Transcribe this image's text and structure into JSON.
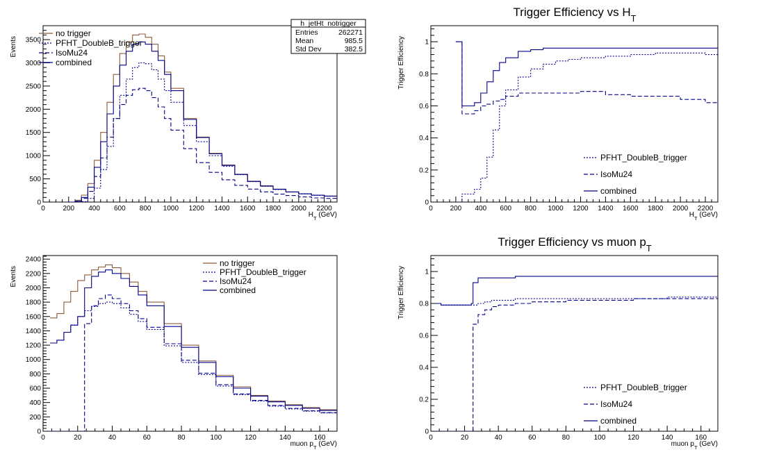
{
  "chart_data": [
    {
      "type": "line",
      "title": "",
      "xlabel": "H_T (GeV)",
      "ylabel": "Events",
      "xlim": [
        0,
        2300
      ],
      "ylim": [
        0,
        3800
      ],
      "xticks": [
        "0",
        "200",
        "400",
        "600",
        "800",
        "1000",
        "1200",
        "1400",
        "1600",
        "1800",
        "2000",
        "2200"
      ],
      "yticks": [
        "0",
        "500",
        "1000",
        "1500",
        "2000",
        "2500",
        "3000",
        "3500"
      ],
      "legend": "top-left",
      "stats": {
        "title": "h_jetHt_notrigger",
        "rows": [
          {
            "label": "Entries",
            "value": "262271"
          },
          {
            "label": "Mean",
            "value": "985.5"
          },
          {
            "label": "Std Dev",
            "value": "382.5"
          }
        ]
      },
      "series": [
        {
          "name": "no trigger",
          "color": "#8b5a3c",
          "style": "solid",
          "x": [
            200,
            250,
            300,
            350,
            400,
            450,
            500,
            550,
            600,
            650,
            700,
            750,
            800,
            850,
            900,
            950,
            1000,
            1100,
            1200,
            1300,
            1400,
            1500,
            1600,
            1700,
            1800,
            1900,
            2000,
            2100,
            2200,
            2300
          ],
          "y": [
            0,
            40,
            150,
            400,
            900,
            1500,
            2150,
            2750,
            3200,
            3450,
            3600,
            3620,
            3550,
            3400,
            3150,
            2800,
            2450,
            1800,
            1400,
            1050,
            800,
            600,
            450,
            350,
            280,
            220,
            180,
            150,
            130,
            110
          ]
        },
        {
          "name": "PFHT_DoubleB_trigger",
          "color": "#00008b",
          "style": "dotted",
          "x": [
            200,
            250,
            300,
            350,
            400,
            450,
            500,
            550,
            600,
            650,
            700,
            750,
            800,
            850,
            900,
            950,
            1000,
            1100,
            1200,
            1300,
            1400,
            1500,
            1600,
            1700,
            1800,
            1900,
            2000,
            2100,
            2200,
            2300
          ],
          "y": [
            0,
            0,
            10,
            80,
            300,
            700,
            1200,
            1800,
            2300,
            2650,
            2900,
            3000,
            2980,
            2850,
            2650,
            2400,
            2150,
            1650,
            1300,
            1000,
            770,
            590,
            440,
            340,
            270,
            215,
            175,
            145,
            125,
            105
          ]
        },
        {
          "name": "IsoMu24",
          "color": "#00008b",
          "style": "dashed",
          "x": [
            200,
            250,
            300,
            350,
            400,
            450,
            500,
            550,
            600,
            650,
            700,
            750,
            800,
            850,
            900,
            950,
            1000,
            1100,
            1200,
            1300,
            1400,
            1500,
            1600,
            1700,
            1800,
            1900,
            2000,
            2100,
            2200,
            2300
          ],
          "y": [
            0,
            20,
            80,
            230,
            550,
            950,
            1400,
            1800,
            2100,
            2300,
            2420,
            2450,
            2400,
            2250,
            2050,
            1800,
            1550,
            1150,
            850,
            640,
            480,
            360,
            280,
            220,
            170,
            140,
            110,
            90,
            80,
            70
          ]
        },
        {
          "name": "combined",
          "color": "#00008b",
          "style": "solid",
          "x": [
            200,
            250,
            300,
            350,
            400,
            450,
            500,
            550,
            600,
            650,
            700,
            750,
            800,
            850,
            900,
            950,
            1000,
            1100,
            1200,
            1300,
            1400,
            1500,
            1600,
            1700,
            1800,
            1900,
            2000,
            2100,
            2200,
            2300
          ],
          "y": [
            0,
            20,
            100,
            320,
            750,
            1300,
            1900,
            2500,
            2950,
            3250,
            3400,
            3450,
            3400,
            3250,
            3050,
            2750,
            2400,
            1780,
            1390,
            1040,
            790,
            595,
            445,
            345,
            275,
            218,
            178,
            148,
            128,
            108
          ]
        }
      ]
    },
    {
      "type": "line",
      "title": "Trigger Efficiency vs H_T",
      "xlabel": "H_T (GeV)",
      "ylabel": "Trigger Efficiency",
      "xlim": [
        0,
        2300
      ],
      "ylim": [
        0,
        1.1
      ],
      "xticks": [
        "0",
        "200",
        "400",
        "600",
        "800",
        "1000",
        "1200",
        "1400",
        "1600",
        "1800",
        "2000",
        "2200"
      ],
      "yticks": [
        "0",
        "0.2",
        "0.4",
        "0.6",
        "0.8",
        "1"
      ],
      "legend": "bottom-right",
      "series": [
        {
          "name": "PFHT_DoubleB_trigger",
          "color": "#00008b",
          "style": "dotted",
          "x": [
            200,
            250,
            300,
            350,
            400,
            450,
            500,
            550,
            600,
            700,
            800,
            900,
            1000,
            1100,
            1200,
            1400,
            1600,
            1800,
            2000,
            2200,
            2300
          ],
          "y": [
            0,
            0.05,
            0.05,
            0.08,
            0.15,
            0.28,
            0.45,
            0.6,
            0.7,
            0.78,
            0.83,
            0.86,
            0.88,
            0.89,
            0.9,
            0.91,
            0.92,
            0.93,
            0.93,
            0.92,
            0.94
          ]
        },
        {
          "name": "IsoMu24",
          "color": "#00008b",
          "style": "dashed",
          "x": [
            200,
            250,
            300,
            350,
            400,
            450,
            500,
            550,
            600,
            700,
            800,
            900,
            1000,
            1100,
            1200,
            1400,
            1600,
            1800,
            2000,
            2200,
            2300
          ],
          "y": [
            1.0,
            0.55,
            0.55,
            0.57,
            0.6,
            0.61,
            0.63,
            0.64,
            0.66,
            0.68,
            0.68,
            0.68,
            0.68,
            0.68,
            0.69,
            0.67,
            0.66,
            0.66,
            0.64,
            0.62,
            0.64
          ]
        },
        {
          "name": "combined",
          "color": "#00008b",
          "style": "solid",
          "x": [
            200,
            250,
            300,
            350,
            400,
            450,
            500,
            550,
            600,
            700,
            800,
            900,
            1000,
            1100,
            1200,
            1400,
            1600,
            1800,
            2000,
            2200,
            2300
          ],
          "y": [
            1.0,
            0.6,
            0.6,
            0.62,
            0.68,
            0.75,
            0.82,
            0.87,
            0.9,
            0.94,
            0.95,
            0.96,
            0.96,
            0.96,
            0.96,
            0.96,
            0.96,
            0.96,
            0.96,
            0.96,
            0.97
          ]
        }
      ]
    },
    {
      "type": "line",
      "title": "",
      "xlabel": "muon p_T (GeV)",
      "ylabel": "Events",
      "xlim": [
        0,
        170
      ],
      "ylim": [
        0,
        2450
      ],
      "xticks": [
        "0",
        "20",
        "40",
        "60",
        "80",
        "100",
        "120",
        "140",
        "160"
      ],
      "yticks": [
        "0",
        "200",
        "400",
        "600",
        "800",
        "1000",
        "1200",
        "1400",
        "1600",
        "1800",
        "2000",
        "2200",
        "2400"
      ],
      "legend": "top-right",
      "series": [
        {
          "name": "no trigger",
          "color": "#8b5a3c",
          "style": "solid",
          "x": [
            4,
            8,
            12,
            16,
            20,
            24,
            28,
            32,
            36,
            40,
            45,
            50,
            55,
            60,
            70,
            80,
            90,
            100,
            110,
            120,
            130,
            140,
            150,
            160,
            170
          ],
          "y": [
            1580,
            1640,
            1800,
            1950,
            2100,
            2180,
            2250,
            2290,
            2320,
            2280,
            2200,
            2080,
            1950,
            1800,
            1500,
            1200,
            980,
            780,
            620,
            500,
            420,
            370,
            330,
            300,
            280
          ]
        },
        {
          "name": "PFHT_DoubleB_trigger",
          "color": "#00008b",
          "style": "dotted",
          "x": [
            4,
            8,
            12,
            16,
            20,
            24,
            28,
            32,
            36,
            40,
            45,
            50,
            55,
            60,
            70,
            80,
            90,
            100,
            110,
            120,
            130,
            140,
            150,
            160,
            170
          ],
          "y": [
            1230,
            1270,
            1380,
            1480,
            1600,
            1680,
            1740,
            1780,
            1800,
            1780,
            1720,
            1630,
            1530,
            1420,
            1190,
            960,
            790,
            630,
            510,
            420,
            350,
            310,
            280,
            255,
            235
          ]
        },
        {
          "name": "IsoMu24",
          "color": "#00008b",
          "style": "dashed",
          "x": [
            4,
            8,
            12,
            16,
            20,
            23,
            24,
            28,
            32,
            36,
            40,
            45,
            50,
            55,
            60,
            70,
            80,
            90,
            100,
            110,
            120,
            130,
            140,
            150,
            160,
            170
          ],
          "y": [
            0,
            0,
            0,
            0,
            0,
            0,
            1500,
            1750,
            1850,
            1900,
            1850,
            1780,
            1680,
            1570,
            1450,
            1220,
            990,
            810,
            650,
            520,
            430,
            360,
            320,
            285,
            260,
            240
          ]
        },
        {
          "name": "combined",
          "color": "#00008b",
          "style": "solid",
          "x": [
            4,
            8,
            12,
            16,
            20,
            24,
            28,
            32,
            36,
            40,
            45,
            50,
            55,
            60,
            70,
            80,
            90,
            100,
            110,
            120,
            130,
            140,
            150,
            160,
            170
          ],
          "y": [
            1230,
            1270,
            1380,
            1480,
            1600,
            2000,
            2160,
            2220,
            2250,
            2200,
            2130,
            2020,
            1900,
            1750,
            1460,
            1170,
            960,
            760,
            600,
            490,
            410,
            360,
            320,
            290,
            270
          ]
        }
      ]
    },
    {
      "type": "line",
      "title": "Trigger Efficiency vs muon p_T",
      "xlabel": "muon p_T (GeV)",
      "ylabel": "Trigger Efficiency",
      "xlim": [
        0,
        170
      ],
      "ylim": [
        0,
        1.1
      ],
      "xticks": [
        "0",
        "20",
        "40",
        "60",
        "80",
        "100",
        "120",
        "140",
        "160"
      ],
      "yticks": [
        "0",
        "0.2",
        "0.4",
        "0.6",
        "0.8",
        "1"
      ],
      "legend": "bottom-right",
      "series": [
        {
          "name": "PFHT_DoubleB_trigger",
          "color": "#00008b",
          "style": "dotted",
          "x": [
            3,
            6,
            10,
            15,
            20,
            24,
            28,
            32,
            36,
            40,
            50,
            60,
            80,
            100,
            120,
            140,
            160,
            170
          ],
          "y": [
            0.8,
            0.79,
            0.79,
            0.79,
            0.79,
            0.79,
            0.8,
            0.81,
            0.82,
            0.82,
            0.83,
            0.83,
            0.83,
            0.83,
            0.83,
            0.84,
            0.84,
            0.84
          ]
        },
        {
          "name": "IsoMu24",
          "color": "#00008b",
          "style": "dashed",
          "x": [
            3,
            6,
            10,
            15,
            20,
            24,
            25,
            28,
            32,
            36,
            40,
            50,
            60,
            80,
            100,
            120,
            140,
            160,
            170
          ],
          "y": [
            0,
            0,
            0,
            0,
            0,
            0,
            0.67,
            0.73,
            0.76,
            0.78,
            0.79,
            0.8,
            0.81,
            0.82,
            0.82,
            0.83,
            0.83,
            0.83,
            0.83
          ]
        },
        {
          "name": "combined",
          "color": "#00008b",
          "style": "solid",
          "x": [
            3,
            6,
            10,
            15,
            20,
            24,
            25,
            28,
            32,
            36,
            40,
            50,
            60,
            80,
            100,
            120,
            140,
            160,
            170
          ],
          "y": [
            0.8,
            0.79,
            0.79,
            0.79,
            0.79,
            0.8,
            0.93,
            0.96,
            0.96,
            0.96,
            0.96,
            0.97,
            0.97,
            0.97,
            0.97,
            0.97,
            0.97,
            0.97,
            0.97
          ]
        }
      ]
    }
  ]
}
